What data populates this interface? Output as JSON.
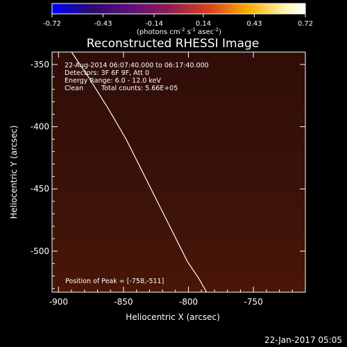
{
  "colorbar": {
    "tick_labels": [
      "-0.72",
      "-0.43",
      "-0.14",
      "0.14",
      "0.43",
      "0.72"
    ],
    "tick_values": [
      -0.72,
      -0.43,
      -0.14,
      0.14,
      0.43,
      0.72
    ],
    "range": [
      -0.72,
      0.72
    ],
    "units_prefix": "(photons cm",
    "units_exp1": "-2",
    "units_mid1": " s",
    "units_exp2": "-1",
    "units_mid2": " asec",
    "units_exp3": "-2",
    "units_suffix": ")",
    "colors": [
      "#0000ff",
      "#2a0b6e",
      "#5a0f7a",
      "#8b1a57",
      "#d8411d",
      "#ffb000",
      "#fff6b4",
      "#ffffff"
    ]
  },
  "plot": {
    "title": "Reconstructed RHESSI Image",
    "xlabel": "Heliocentric X (arcsec)",
    "ylabel": "Heliocentric Y (arcsec)",
    "x_ticks": [
      "-900",
      "-850",
      "-800",
      "-750"
    ],
    "y_ticks": [
      "-350",
      "-400",
      "-450",
      "-500"
    ],
    "xlim": [
      -905,
      -710
    ],
    "ylim": [
      -533,
      -340
    ]
  },
  "info": {
    "line1": "22-Aug-2014 06:07:40.000 to 06:17:40.000",
    "line2": "Detectors: 3F 6F 9F, Att 0",
    "line3": "Energy Range: 6.0 - 12.0 keV",
    "line4_label": "Clean",
    "line4_counts": "Total counts: 5.66E+05",
    "peak_text": "Position of Peak = [-758,-511]"
  },
  "image_data": {
    "peak_position": [
      -758,
      -511
    ],
    "colors": {
      "background": "#000000",
      "field_top": "#2f0d07",
      "field_mid": "#3a1209",
      "field_bottom": "#4a1608",
      "source_outer": "#6b1d0c",
      "source_mid": "#d2581e",
      "source_core": "#fff3a3",
      "limb": "#ffffff"
    },
    "limb_points": [
      [
        -890,
        -340
      ],
      [
        -877,
        -360
      ],
      [
        -862,
        -385
      ],
      [
        -848,
        -410
      ],
      [
        -836,
        -435
      ],
      [
        -824,
        -460
      ],
      [
        -812,
        -485
      ],
      [
        -801,
        -508
      ],
      [
        -792,
        -522
      ],
      [
        -786,
        -533
      ]
    ]
  },
  "footer": {
    "date": "22-Jan-2017 05:05"
  }
}
